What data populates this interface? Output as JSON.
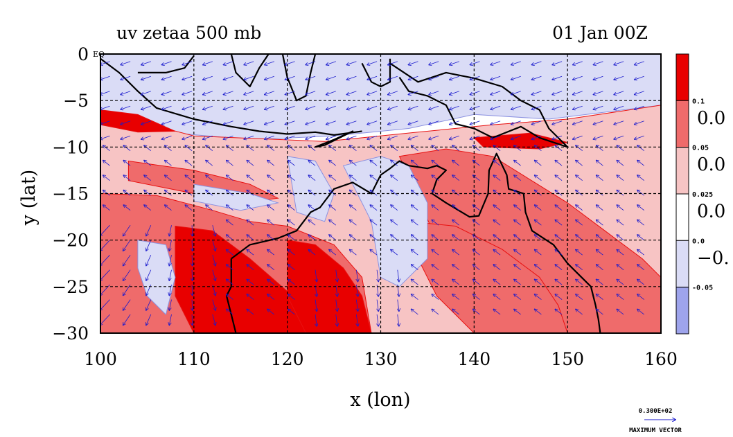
{
  "chart_data": {
    "type": "heatmap",
    "title_left": "uv zetaa 500 mb",
    "title_right": "01 Jan 00Z",
    "xlabel": "x (lon)",
    "ylabel": "y (lat)",
    "xlim": [
      100,
      160
    ],
    "ylim": [
      -30,
      0
    ],
    "x_ticks": [
      100,
      110,
      120,
      130,
      140,
      150,
      160
    ],
    "y_ticks": [
      0,
      -5,
      -10,
      -15,
      -20,
      -25,
      -30
    ],
    "x_tick_labels": [
      "100",
      "110",
      "120",
      "130",
      "140",
      "150",
      "160"
    ],
    "y_tick_labels": [
      "0",
      "−5",
      "−10",
      "−15",
      "−20",
      "−25",
      "−30"
    ],
    "corner_label": "EQ",
    "grid": true,
    "colorbar": {
      "levels": [
        0.1,
        0.05,
        0.025,
        0.0,
        -0.05
      ],
      "level_labels": [
        "0.1",
        "0.05",
        "0.025",
        "0.0",
        "-0.05"
      ],
      "big_labels": [
        "0.0",
        "0.0",
        "0.0",
        "−0."
      ],
      "colors": [
        "#e80000",
        "#ef6b6b",
        "#f7c4c4",
        "#ffffff",
        "#dadcf6",
        "#9ea4ec"
      ]
    },
    "vector_legend": {
      "value": "0.300E+02",
      "label": "MAXIMUM VECTOR"
    },
    "colors": {
      "vector": "#1a1acc",
      "contour": "#e81010",
      "coast": "#000000",
      "strong_pos": "#e80000",
      "mid_pos": "#ef6b6b",
      "weak_pos": "#f7c4c4",
      "weak_neg": "#dadcf6",
      "strong_neg": "#9ea4ec"
    },
    "vorticity_regions": [
      {
        "level": "strong_neg",
        "polygon": [
          [
            100,
            0
          ],
          [
            160,
            0
          ],
          [
            160,
            -4
          ],
          [
            152,
            -5
          ],
          [
            146,
            -4.5
          ],
          [
            140,
            -5.5
          ],
          [
            130,
            -6.5
          ],
          [
            124,
            -7.2
          ],
          [
            116,
            -8
          ],
          [
            108,
            -7
          ],
          [
            103,
            -6.2
          ],
          [
            100,
            -5.8
          ]
        ]
      },
      {
        "level": "weak_neg",
        "polygon": [
          [
            100,
            0
          ],
          [
            160,
            0
          ],
          [
            160,
            -5.5
          ],
          [
            148,
            -7
          ],
          [
            140,
            -6.5
          ],
          [
            133,
            -8
          ],
          [
            125,
            -8.8
          ],
          [
            116,
            -9.2
          ],
          [
            108,
            -8.5
          ],
          [
            102,
            -7
          ],
          [
            100,
            -6.5
          ]
        ]
      },
      {
        "level": "weak_pos",
        "polygon": [
          [
            100,
            -6.2
          ],
          [
            110,
            -8.8
          ],
          [
            124,
            -9.4
          ],
          [
            134,
            -8.4
          ],
          [
            142,
            -7.6
          ],
          [
            150,
            -7
          ],
          [
            160,
            -5.5
          ],
          [
            160,
            -30
          ],
          [
            100,
            -30
          ]
        ]
      },
      {
        "level": "mid_pos",
        "polygon": [
          [
            100,
            -15
          ],
          [
            106,
            -15.2
          ],
          [
            112,
            -16.8
          ],
          [
            116,
            -18
          ],
          [
            120,
            -18.5
          ],
          [
            125,
            -20.5
          ],
          [
            128,
            -24
          ],
          [
            129,
            -30
          ],
          [
            100,
            -30
          ]
        ]
      },
      {
        "level": "mid_pos",
        "polygon": [
          [
            103,
            -11.5
          ],
          [
            110,
            -12.5
          ],
          [
            116,
            -14
          ],
          [
            119,
            -15.5
          ],
          [
            115,
            -16
          ],
          [
            108,
            -14.6
          ],
          [
            103,
            -13.6
          ]
        ]
      },
      {
        "level": "mid_pos",
        "polygon": [
          [
            132,
            -11
          ],
          [
            137,
            -10.2
          ],
          [
            142,
            -11
          ],
          [
            146,
            -13.5
          ],
          [
            150,
            -16
          ],
          [
            154,
            -19
          ],
          [
            158,
            -22
          ],
          [
            160,
            -24
          ],
          [
            160,
            -30
          ],
          [
            150,
            -30
          ],
          [
            145,
            -27
          ],
          [
            140,
            -24
          ],
          [
            136,
            -20
          ],
          [
            134,
            -15.5
          ]
        ]
      },
      {
        "level": "mid_pos",
        "polygon": [
          [
            133,
            -18
          ],
          [
            138,
            -18.5
          ],
          [
            143,
            -21
          ],
          [
            147,
            -24
          ],
          [
            149,
            -27
          ],
          [
            150,
            -30
          ],
          [
            140,
            -30
          ],
          [
            136,
            -26
          ],
          [
            134,
            -22
          ]
        ]
      },
      {
        "level": "strong_pos",
        "polygon": [
          [
            108,
            -18.5
          ],
          [
            112,
            -19
          ],
          [
            116,
            -22
          ],
          [
            120,
            -25.5
          ],
          [
            124,
            -28
          ],
          [
            126,
            -30
          ],
          [
            110,
            -30
          ],
          [
            108,
            -26
          ]
        ]
      },
      {
        "level": "strong_pos",
        "polygon": [
          [
            120,
            -20
          ],
          [
            123,
            -20.5
          ],
          [
            126,
            -23
          ],
          [
            128,
            -26
          ],
          [
            129,
            -30
          ],
          [
            122,
            -30
          ],
          [
            120,
            -26
          ]
        ]
      },
      {
        "level": "strong_pos",
        "polygon": [
          [
            100,
            -6
          ],
          [
            104,
            -6.5
          ],
          [
            108,
            -8.3
          ],
          [
            104,
            -8.4
          ],
          [
            100,
            -7.6
          ]
        ]
      },
      {
        "level": "strong_pos",
        "polygon": [
          [
            140,
            -9
          ],
          [
            146,
            -8.5
          ],
          [
            150,
            -9.5
          ],
          [
            147,
            -10.2
          ],
          [
            141,
            -10
          ]
        ]
      },
      {
        "level": "weak_neg",
        "polygon": [
          [
            104,
            -20
          ],
          [
            107,
            -20.5
          ],
          [
            108,
            -24
          ],
          [
            107,
            -28
          ],
          [
            105,
            -26
          ],
          [
            104,
            -23
          ]
        ]
      },
      {
        "level": "weak_neg",
        "polygon": [
          [
            126,
            -12
          ],
          [
            130,
            -11
          ],
          [
            133,
            -12
          ],
          [
            135,
            -16
          ],
          [
            135,
            -22
          ],
          [
            132,
            -25
          ],
          [
            130,
            -24
          ],
          [
            129,
            -18
          ]
        ]
      },
      {
        "level": "weak_neg",
        "polygon": [
          [
            110,
            -14
          ],
          [
            116,
            -15
          ],
          [
            119,
            -16
          ],
          [
            115,
            -16.8
          ],
          [
            110,
            -15.8
          ]
        ]
      },
      {
        "level": "weak_neg",
        "polygon": [
          [
            120,
            -11
          ],
          [
            123,
            -11.5
          ],
          [
            125,
            -15
          ],
          [
            124,
            -18
          ],
          [
            121,
            -17
          ]
        ]
      }
    ],
    "coastlines": [
      [
        [
          100,
          -0.5
        ],
        [
          102,
          -2
        ],
        [
          104,
          -4
        ],
        [
          106,
          -5.8
        ],
        [
          110,
          -7
        ],
        [
          114,
          -7.8
        ],
        [
          117,
          -8.3
        ],
        [
          120,
          -8.6
        ],
        [
          123,
          -8.4
        ],
        [
          125,
          -8.7
        ],
        [
          128,
          -8.3
        ]
      ],
      [
        [
          104,
          -2
        ],
        [
          107,
          -2
        ],
        [
          109,
          -1.5
        ],
        [
          110,
          -0.2
        ]
      ],
      [
        [
          114,
          0
        ],
        [
          114.5,
          -2
        ],
        [
          116,
          -3.5
        ],
        [
          117,
          -1.5
        ],
        [
          118,
          0
        ]
      ],
      [
        [
          119.5,
          0
        ],
        [
          120,
          -2.5
        ],
        [
          121,
          -5
        ],
        [
          122,
          -4.5
        ],
        [
          122.5,
          -2
        ],
        [
          123,
          0
        ]
      ],
      [
        [
          128,
          -1
        ],
        [
          129,
          -3
        ],
        [
          130,
          -3.5
        ],
        [
          131,
          -3
        ],
        [
          131,
          -0.5
        ]
      ],
      [
        [
          131,
          -1
        ],
        [
          134,
          -3
        ],
        [
          137,
          -2
        ],
        [
          140,
          -2.6
        ],
        [
          143,
          -3.5
        ],
        [
          145,
          -5
        ],
        [
          147,
          -6
        ],
        [
          148,
          -8
        ],
        [
          150,
          -10
        ],
        [
          147,
          -9
        ],
        [
          145,
          -7.8
        ],
        [
          142,
          -9
        ],
        [
          140,
          -8
        ],
        [
          138,
          -7.5
        ],
        [
          137,
          -5.5
        ],
        [
          135,
          -4.5
        ],
        [
          133,
          -4
        ],
        [
          132,
          -2.5
        ]
      ],
      [
        [
          123,
          -10
        ],
        [
          125,
          -9.2
        ],
        [
          127,
          -8.3
        ],
        [
          124,
          -9.8
        ],
        [
          123,
          -10
        ]
      ],
      [
        [
          114,
          -22
        ],
        [
          114,
          -25
        ],
        [
          113.5,
          -26
        ],
        [
          114,
          -28
        ],
        [
          114.5,
          -30
        ]
      ],
      [
        [
          114,
          -22
        ],
        [
          116,
          -20.5
        ],
        [
          119,
          -19.8
        ],
        [
          121,
          -19
        ],
        [
          122.5,
          -17
        ],
        [
          123.5,
          -16.5
        ],
        [
          125,
          -14.5
        ],
        [
          127,
          -13.8
        ],
        [
          129,
          -15
        ],
        [
          130,
          -13
        ],
        [
          131,
          -12.3
        ],
        [
          132,
          -11.5
        ],
        [
          133,
          -12
        ],
        [
          135,
          -12.3
        ],
        [
          136,
          -12
        ],
        [
          137,
          -12.5
        ],
        [
          136,
          -13.5
        ],
        [
          135.5,
          -15
        ],
        [
          137,
          -16
        ],
        [
          139.5,
          -17.5
        ],
        [
          140.5,
          -17.4
        ],
        [
          141.5,
          -15
        ],
        [
          141.6,
          -12.5
        ],
        [
          142.4,
          -10.7
        ],
        [
          143.5,
          -13
        ],
        [
          143.7,
          -14.5
        ],
        [
          145.3,
          -15
        ],
        [
          145.5,
          -17
        ],
        [
          146.2,
          -19
        ],
        [
          148.5,
          -20.5
        ],
        [
          150,
          -22.5
        ],
        [
          151,
          -23.5
        ],
        [
          152.5,
          -25
        ],
        [
          153,
          -27
        ],
        [
          153.3,
          -28.5
        ],
        [
          153.5,
          -30
        ]
      ]
    ]
  }
}
